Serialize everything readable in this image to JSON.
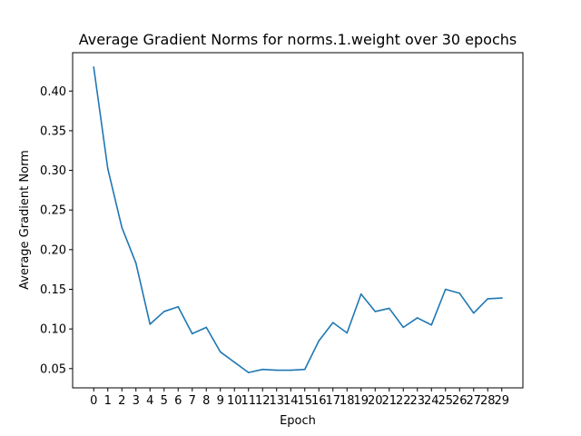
{
  "chart_data": {
    "type": "line",
    "title": "Average Gradient Norms for norms.1.weight over 30 epochs",
    "xlabel": "Epoch",
    "ylabel": "Average Gradient Norm",
    "x": [
      0,
      1,
      2,
      3,
      4,
      5,
      6,
      7,
      8,
      9,
      10,
      11,
      12,
      13,
      14,
      15,
      16,
      17,
      18,
      19,
      20,
      21,
      22,
      23,
      24,
      25,
      26,
      27,
      28,
      29
    ],
    "x_tick_labels": [
      "0",
      "1",
      "2",
      "3",
      "4",
      "5",
      "6",
      "7",
      "8",
      "9",
      "10",
      "11",
      "12",
      "13",
      "14",
      "15",
      "16",
      "17",
      "18",
      "19",
      "20",
      "21",
      "22",
      "23",
      "24",
      "25",
      "26",
      "27",
      "28",
      "29"
    ],
    "y_ticks": [
      0.05,
      0.1,
      0.15,
      0.2,
      0.25,
      0.3,
      0.35,
      0.4
    ],
    "y_tick_labels": [
      "0.05",
      "0.10",
      "0.15",
      "0.20",
      "0.25",
      "0.30",
      "0.35",
      "0.40"
    ],
    "xlim": [
      -1.5,
      30.5
    ],
    "ylim": [
      0.0257,
      0.4484
    ],
    "series": [
      {
        "values": [
          0.43,
          0.302,
          0.228,
          0.183,
          0.106,
          0.122,
          0.128,
          0.094,
          0.102,
          0.071,
          0.058,
          0.045,
          0.049,
          0.048,
          0.048,
          0.049,
          0.085,
          0.108,
          0.095,
          0.144,
          0.122,
          0.126,
          0.102,
          0.114,
          0.105,
          0.15,
          0.145,
          0.12,
          0.138,
          0.139
        ],
        "color": "#1f77b4"
      }
    ],
    "grid": false,
    "legend": "none"
  }
}
